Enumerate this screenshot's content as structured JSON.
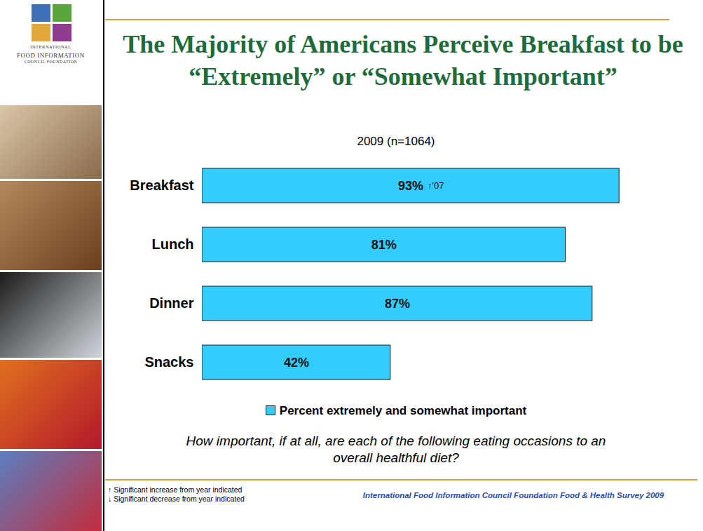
{
  "chart_data": {
    "type": "bar",
    "orientation": "horizontal",
    "title": "The Majority of Americans Perceive Breakfast to be “Extremely” or “Somewhat Important”",
    "subtitle": "2009 (n=1064)",
    "categories": [
      "Breakfast",
      "Lunch",
      "Dinner",
      "Snacks"
    ],
    "series": [
      {
        "name": "Percent extremely and somewhat important",
        "color": "#33CCFF",
        "values": [
          93,
          81,
          87,
          42
        ]
      }
    ],
    "value_labels": [
      "93%",
      "81%",
      "87%",
      "42%"
    ],
    "data_labels": true,
    "annotations": [
      {
        "category": "Breakfast",
        "text": "↑'07"
      }
    ],
    "xlim": [
      0,
      100
    ],
    "tick_labels": "y",
    "grid": false,
    "legend": "bottom",
    "caption": "How important, if at all, are each of the following eating occasions to an overall healthful diet?",
    "footnotes": [
      "↑ Significant increase from year indicated",
      "↓ Significant decrease from year indicated"
    ],
    "source": "International Food Information Council Foundation Food & Health Survey 2009",
    "logo": [
      "INTERNATIONAL",
      "FOOD INFORMATION",
      "COUNCIL FOUNDATION"
    ]
  }
}
